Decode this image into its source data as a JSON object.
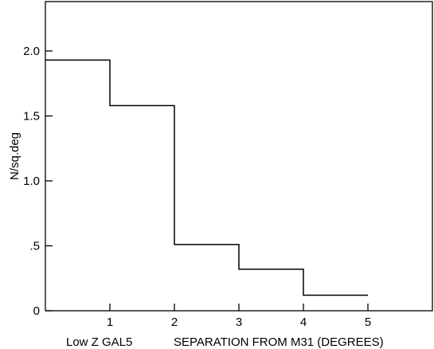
{
  "chart_data": {
    "type": "line",
    "style": "step-histogram",
    "xlabel_left": "Low Z GAL5",
    "xlabel": "SEPARATION FROM M31 (DEGREES)",
    "ylabel": "N/sq.deg",
    "xlim": [
      0,
      6
    ],
    "ylim": [
      0,
      2.4
    ],
    "x_ticks": [
      1,
      2,
      3,
      4,
      5
    ],
    "x_tick_labels": [
      "1",
      "2",
      "3",
      "4",
      "5"
    ],
    "y_ticks": [
      0,
      0.5,
      1.0,
      1.5,
      2.0
    ],
    "y_tick_labels": [
      "0",
      ".5",
      "1.0",
      "1.5",
      "2.0"
    ],
    "grid": false,
    "bins": [
      {
        "x0": 0,
        "x1": 1,
        "y": 1.93
      },
      {
        "x0": 1,
        "x1": 2,
        "y": 1.58
      },
      {
        "x0": 2,
        "x1": 3,
        "y": 0.51
      },
      {
        "x0": 3,
        "x1": 4,
        "y": 0.32
      },
      {
        "x0": 4,
        "x1": 5,
        "y": 0.12
      }
    ]
  }
}
